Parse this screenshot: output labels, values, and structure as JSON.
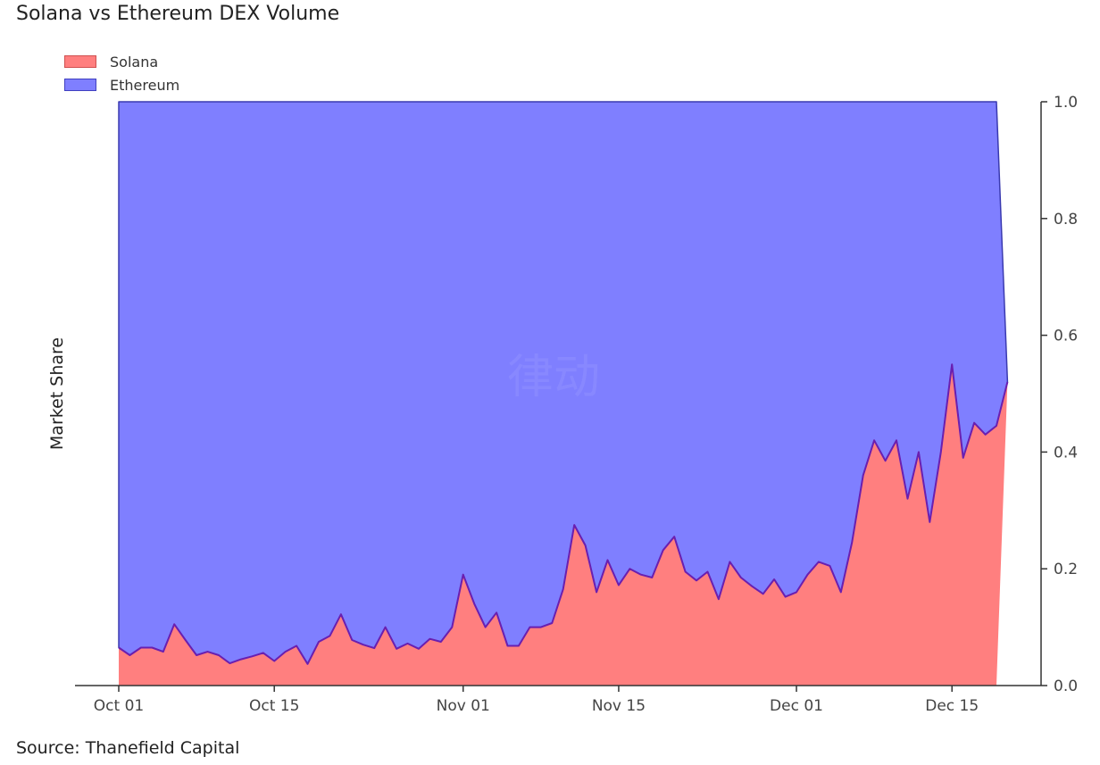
{
  "source_note": "Source: Thanefield Capital",
  "watermark": "律动",
  "chart_data": {
    "type": "area",
    "stacked": true,
    "title": "Solana vs Ethereum DEX Volume",
    "xlabel": "",
    "ylabel": "Market Share",
    "ylim": [
      0,
      1
    ],
    "yticks": [
      "0.0",
      "0.2",
      "0.4",
      "0.6",
      "0.8",
      "1.0"
    ],
    "y_axis_position": "right",
    "x_start": "2023-10-01",
    "x_end": "2023-12-19",
    "xticks": [
      {
        "date": "2023-10-01",
        "label": "Oct 01"
      },
      {
        "date": "2023-10-15",
        "label": "Oct 15"
      },
      {
        "date": "2023-11-01",
        "label": "Nov 01"
      },
      {
        "date": "2023-11-15",
        "label": "Nov 15"
      },
      {
        "date": "2023-12-01",
        "label": "Dec 01"
      },
      {
        "date": "2023-12-15",
        "label": "Dec 15"
      }
    ],
    "legend_position": "top-left",
    "series": [
      {
        "name": "Solana",
        "color": "#ff7f7f",
        "values": [
          0.065,
          0.052,
          0.065,
          0.065,
          0.058,
          0.105,
          0.078,
          0.052,
          0.058,
          0.052,
          0.038,
          0.045,
          0.05,
          0.056,
          0.042,
          0.058,
          0.068,
          0.037,
          0.075,
          0.085,
          0.122,
          0.078,
          0.07,
          0.064,
          0.1,
          0.063,
          0.072,
          0.063,
          0.08,
          0.075,
          0.1,
          0.19,
          0.14,
          0.1,
          0.125,
          0.068,
          0.068,
          0.1,
          0.1,
          0.107,
          0.165,
          0.275,
          0.24,
          0.16,
          0.215,
          0.172,
          0.2,
          0.19,
          0.185,
          0.232,
          0.255,
          0.195,
          0.18,
          0.195,
          0.148,
          0.212,
          0.185,
          0.17,
          0.157,
          0.182,
          0.152,
          0.16,
          0.19,
          0.212,
          0.205,
          0.16,
          0.245,
          0.36,
          0.42,
          0.385,
          0.42,
          0.32,
          0.4,
          0.28,
          0.4,
          0.55,
          0.39,
          0.45,
          0.43,
          0.445,
          0.52
        ]
      },
      {
        "name": "Ethereum",
        "color": "#7f7fff",
        "values": "remainder to 1.0"
      }
    ]
  }
}
